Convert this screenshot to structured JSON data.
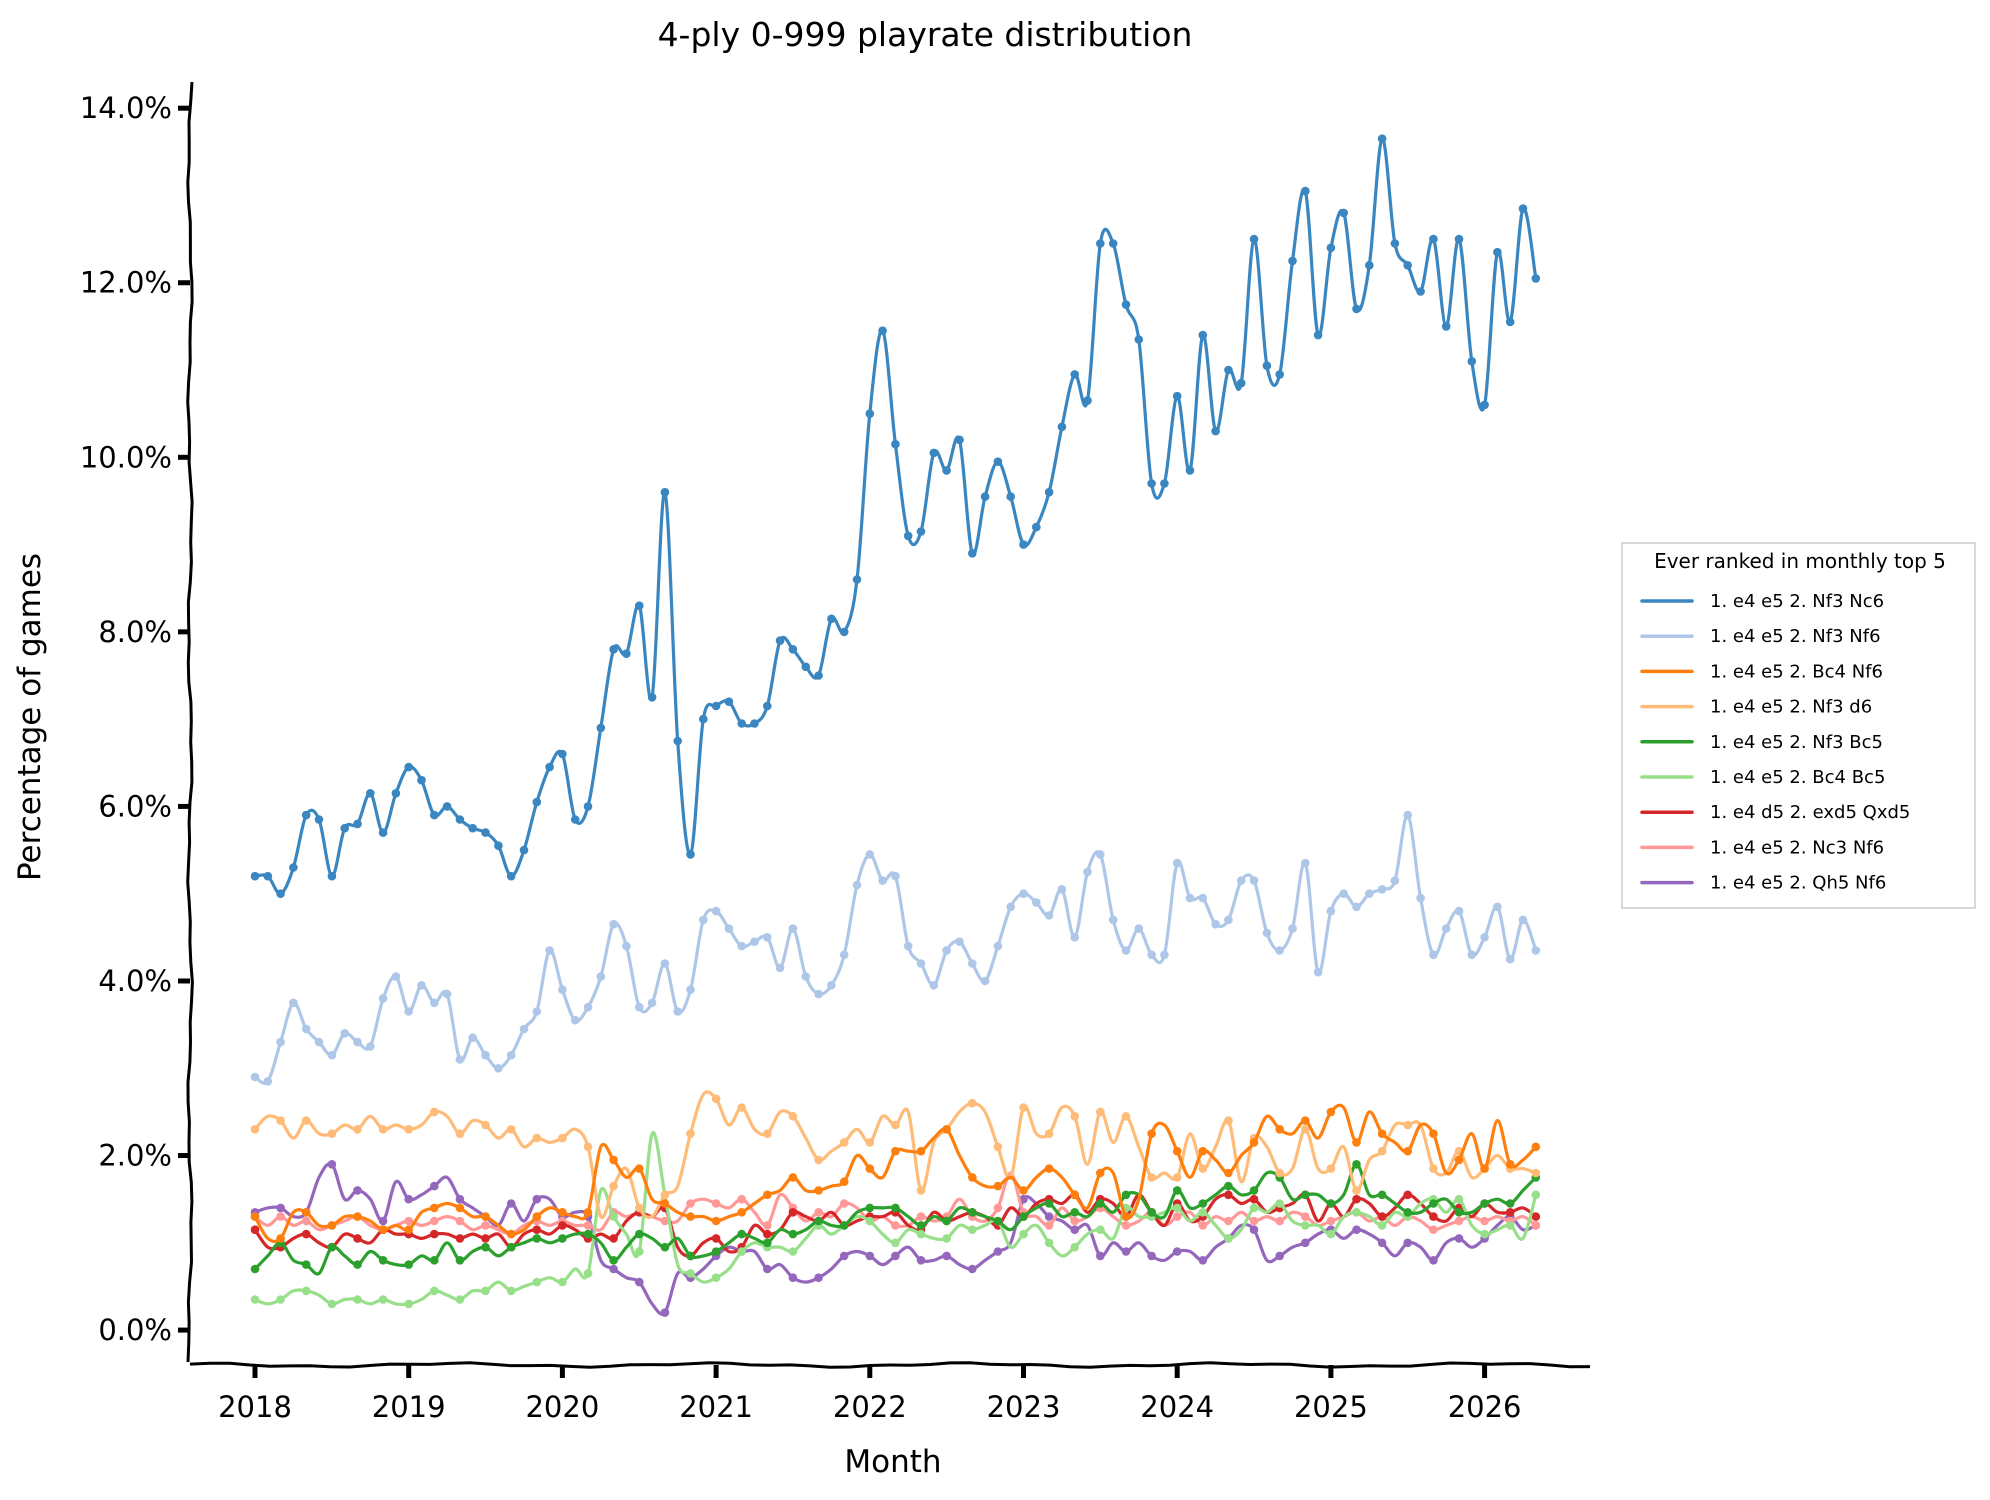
{
  "chart_data": {
    "type": "line",
    "title": "4-ply 0-999 playrate distribution",
    "xlabel": "Month",
    "ylabel": "Percentage of games",
    "x_ticks": [
      "2018",
      "2019",
      "2020",
      "2021",
      "2022",
      "2023",
      "2024",
      "2025",
      "2026"
    ],
    "y_ticks": [
      "0.0%",
      "2.0%",
      "4.0%",
      "6.0%",
      "8.0%",
      "10.0%",
      "12.0%",
      "14.0%"
    ],
    "ylim": [
      -0.4,
      14.3
    ],
    "xlim": [
      "2017-07",
      "2026-09"
    ],
    "x_start": "2018-01",
    "x_frequency": "monthly",
    "grid": false,
    "markers": "shown on months where the series ranked in the monthly top 5",
    "legend": {
      "title": "Ever ranked in monthly top 5",
      "position": "right"
    },
    "series": [
      {
        "name": "1. e4 e5 2. Nf3 Nc6",
        "color": "#3a86c0",
        "values": [
          5.2,
          5.2,
          5.0,
          5.3,
          5.9,
          5.85,
          5.2,
          5.75,
          5.8,
          6.15,
          5.7,
          6.15,
          6.45,
          6.3,
          5.9,
          6.0,
          5.85,
          5.75,
          5.7,
          5.55,
          5.2,
          5.5,
          6.05,
          6.45,
          6.6,
          5.85,
          6.0,
          6.9,
          7.8,
          7.75,
          8.3,
          7.25,
          9.6,
          6.75,
          5.45,
          7.0,
          7.15,
          7.2,
          6.95,
          6.95,
          7.15,
          7.9,
          7.8,
          7.6,
          7.5,
          8.15,
          8.0,
          8.6,
          10.5,
          11.45,
          10.15,
          9.1,
          9.15,
          10.05,
          9.85,
          10.2,
          8.9,
          9.55,
          9.95,
          9.55,
          9.0,
          9.2,
          9.6,
          10.35,
          10.95,
          10.65,
          12.45,
          12.45,
          11.75,
          11.35,
          9.7,
          9.7,
          10.7,
          9.85,
          11.4,
          10.3,
          11.0,
          10.85,
          12.5,
          11.05,
          10.95,
          12.25,
          13.05,
          11.4,
          12.4,
          12.8,
          11.7,
          12.2,
          13.65,
          12.45,
          12.2,
          11.9,
          12.5,
          11.5,
          12.5,
          11.1,
          10.6,
          12.35,
          11.55,
          12.85,
          12.05
        ]
      },
      {
        "name": "1. e4 e5 2. Nf3 Nf6",
        "color": "#aec7e8",
        "values": [
          2.9,
          2.85,
          3.3,
          3.75,
          3.45,
          3.3,
          3.15,
          3.4,
          3.3,
          3.25,
          3.8,
          4.05,
          3.65,
          3.95,
          3.75,
          3.85,
          3.1,
          3.35,
          3.15,
          3.0,
          3.15,
          3.45,
          3.65,
          4.35,
          3.9,
          3.55,
          3.7,
          4.05,
          4.65,
          4.4,
          3.7,
          3.75,
          4.2,
          3.65,
          3.9,
          4.7,
          4.8,
          4.6,
          4.4,
          4.45,
          4.5,
          4.15,
          4.6,
          4.05,
          3.85,
          3.95,
          4.3,
          5.1,
          5.45,
          5.15,
          5.2,
          4.4,
          4.2,
          3.95,
          4.35,
          4.45,
          4.2,
          4.0,
          4.4,
          4.85,
          5.0,
          4.9,
          4.75,
          5.05,
          4.5,
          5.25,
          5.45,
          4.7,
          4.35,
          4.6,
          4.3,
          4.3,
          5.35,
          4.95,
          4.95,
          4.65,
          4.7,
          5.15,
          5.15,
          4.55,
          4.35,
          4.6,
          5.35,
          4.1,
          4.8,
          5.0,
          4.85,
          5.0,
          5.05,
          5.15,
          5.9,
          4.95,
          4.3,
          4.6,
          4.8,
          4.3,
          4.5,
          4.85,
          4.25,
          4.7,
          4.35
        ]
      },
      {
        "name": "1. e4 e5 2. Bc4 Nf6",
        "color": "#ff7f0e",
        "values": [
          1.3,
          1.05,
          1.05,
          1.35,
          1.35,
          1.2,
          1.2,
          1.3,
          1.3,
          1.25,
          1.15,
          1.2,
          1.15,
          1.35,
          1.4,
          1.45,
          1.4,
          1.3,
          1.3,
          1.2,
          1.1,
          1.15,
          1.3,
          1.4,
          1.35,
          1.3,
          1.35,
          2.1,
          1.95,
          1.75,
          1.85,
          1.5,
          1.45,
          1.35,
          1.3,
          1.3,
          1.25,
          1.3,
          1.35,
          1.45,
          1.55,
          1.6,
          1.75,
          1.6,
          1.6,
          1.65,
          1.7,
          2.0,
          1.85,
          1.75,
          2.05,
          2.05,
          2.05,
          2.2,
          2.3,
          2.0,
          1.75,
          1.65,
          1.65,
          1.75,
          1.6,
          1.75,
          1.85,
          1.75,
          1.55,
          1.4,
          1.8,
          1.8,
          1.3,
          1.5,
          2.25,
          2.35,
          2.05,
          1.75,
          2.05,
          1.95,
          1.8,
          2.0,
          2.15,
          2.45,
          2.3,
          2.25,
          2.4,
          2.2,
          2.5,
          2.55,
          2.15,
          2.5,
          2.25,
          2.15,
          2.05,
          2.35,
          2.25,
          1.8,
          1.95,
          2.25,
          1.85,
          2.4,
          1.9,
          1.95,
          2.1
        ]
      },
      {
        "name": "1. e4 e5 2. Nf3 d6",
        "color": "#ffbb78",
        "values": [
          2.3,
          2.45,
          2.4,
          2.2,
          2.4,
          2.25,
          2.25,
          2.35,
          2.3,
          2.45,
          2.3,
          2.35,
          2.3,
          2.35,
          2.5,
          2.45,
          2.25,
          2.4,
          2.35,
          2.2,
          2.3,
          2.1,
          2.2,
          2.15,
          2.2,
          2.3,
          2.1,
          1.3,
          1.65,
          1.85,
          1.4,
          1.3,
          1.55,
          1.65,
          2.25,
          2.7,
          2.65,
          2.35,
          2.55,
          2.3,
          2.25,
          2.5,
          2.45,
          2.2,
          1.95,
          2.05,
          2.15,
          2.3,
          2.15,
          2.45,
          2.35,
          2.5,
          1.6,
          2.15,
          2.3,
          2.5,
          2.6,
          2.5,
          2.1,
          1.75,
          2.55,
          2.25,
          2.25,
          2.55,
          2.45,
          1.9,
          2.5,
          2.15,
          2.45,
          2.1,
          1.75,
          1.8,
          1.75,
          2.25,
          1.85,
          2.1,
          2.4,
          1.7,
          2.2,
          2.1,
          1.8,
          1.85,
          2.3,
          1.85,
          1.85,
          2.1,
          1.6,
          1.95,
          2.05,
          2.35,
          2.35,
          2.35,
          1.85,
          1.8,
          2.05,
          1.75,
          1.85,
          2.0,
          1.85,
          1.85,
          1.8
        ]
      },
      {
        "name": "1. e4 e5 2. Nf3 Bc5",
        "color": "#2ca02c",
        "values": [
          0.7,
          0.85,
          1.0,
          0.8,
          0.75,
          0.65,
          0.95,
          0.85,
          0.75,
          0.9,
          0.8,
          0.75,
          0.75,
          0.85,
          0.8,
          1.0,
          0.8,
          0.9,
          0.95,
          0.85,
          0.95,
          1.0,
          1.05,
          1.0,
          1.05,
          1.1,
          1.1,
          1.0,
          0.8,
          0.95,
          1.1,
          1.05,
          0.95,
          1.05,
          0.85,
          0.85,
          0.9,
          1.0,
          1.1,
          1.05,
          1.0,
          1.15,
          1.1,
          1.15,
          1.25,
          1.2,
          1.2,
          1.35,
          1.4,
          1.4,
          1.4,
          1.3,
          1.2,
          1.3,
          1.25,
          1.4,
          1.35,
          1.3,
          1.25,
          1.15,
          1.3,
          1.4,
          1.45,
          1.3,
          1.35,
          1.3,
          1.45,
          1.35,
          1.55,
          1.55,
          1.35,
          1.3,
          1.6,
          1.4,
          1.45,
          1.55,
          1.65,
          1.55,
          1.6,
          1.8,
          1.75,
          1.5,
          1.55,
          1.55,
          1.45,
          1.55,
          1.9,
          1.55,
          1.55,
          1.45,
          1.35,
          1.35,
          1.45,
          1.5,
          1.35,
          1.35,
          1.45,
          1.5,
          1.45,
          1.6,
          1.75
        ]
      },
      {
        "name": "1. e4 e5 2. Bc4 Bc5",
        "color": "#98df8a",
        "values": [
          0.35,
          0.3,
          0.35,
          0.45,
          0.45,
          0.4,
          0.3,
          0.35,
          0.35,
          0.3,
          0.35,
          0.3,
          0.3,
          0.35,
          0.45,
          0.4,
          0.35,
          0.45,
          0.45,
          0.55,
          0.45,
          0.5,
          0.55,
          0.6,
          0.55,
          0.7,
          0.65,
          1.6,
          1.3,
          1.1,
          0.9,
          2.25,
          1.55,
          0.75,
          0.65,
          0.55,
          0.6,
          0.7,
          0.9,
          1.0,
          0.95,
          0.95,
          0.9,
          1.05,
          1.2,
          1.1,
          1.2,
          1.3,
          1.25,
          1.1,
          1.0,
          1.15,
          1.1,
          1.05,
          1.05,
          1.2,
          1.15,
          1.2,
          1.25,
          0.95,
          1.1,
          1.2,
          1.0,
          0.85,
          0.95,
          1.1,
          1.15,
          1.05,
          1.4,
          1.3,
          1.3,
          1.35,
          1.4,
          1.25,
          1.35,
          1.2,
          1.05,
          1.15,
          1.4,
          1.35,
          1.45,
          1.25,
          1.2,
          1.2,
          1.1,
          1.3,
          1.35,
          1.3,
          1.2,
          1.35,
          1.3,
          1.45,
          1.5,
          1.35,
          1.5,
          1.2,
          1.1,
          1.15,
          1.2,
          1.05,
          1.55
        ]
      },
      {
        "name": "1. e4 d5 2. exd5 Qxd5",
        "color": "#d62728",
        "values": [
          1.15,
          0.95,
          0.95,
          1.05,
          1.1,
          1.0,
          0.95,
          1.1,
          1.05,
          1.0,
          1.15,
          1.1,
          1.1,
          1.05,
          1.1,
          1.1,
          1.05,
          1.1,
          1.05,
          1.1,
          0.95,
          1.1,
          1.15,
          1.1,
          1.2,
          1.15,
          1.05,
          1.1,
          1.05,
          1.25,
          1.35,
          1.3,
          1.4,
          0.95,
          0.85,
          1.0,
          1.05,
          0.9,
          0.95,
          1.2,
          1.1,
          1.15,
          1.35,
          1.3,
          1.25,
          1.35,
          1.2,
          1.25,
          1.3,
          1.3,
          1.35,
          1.2,
          1.15,
          1.35,
          1.25,
          1.3,
          1.35,
          1.3,
          1.2,
          1.4,
          1.3,
          1.45,
          1.5,
          1.45,
          1.55,
          1.35,
          1.5,
          1.45,
          1.3,
          1.55,
          1.35,
          1.2,
          1.45,
          1.25,
          1.3,
          1.5,
          1.55,
          1.45,
          1.5,
          1.35,
          1.4,
          1.45,
          1.55,
          1.25,
          1.45,
          1.3,
          1.5,
          1.45,
          1.3,
          1.4,
          1.55,
          1.45,
          1.3,
          1.25,
          1.4,
          1.3,
          1.45,
          1.35,
          1.35,
          1.4,
          1.3
        ]
      },
      {
        "name": "1. e4 e5 2. Nc3 Nf6",
        "color": "#ff9896",
        "values": [
          1.3,
          1.2,
          1.3,
          1.2,
          1.25,
          1.15,
          1.2,
          1.25,
          1.3,
          1.2,
          1.15,
          1.2,
          1.25,
          1.2,
          1.25,
          1.3,
          1.25,
          1.15,
          1.2,
          1.15,
          1.1,
          1.2,
          1.25,
          1.2,
          1.25,
          1.2,
          1.2,
          1.15,
          1.35,
          1.3,
          1.35,
          1.3,
          1.25,
          1.25,
          1.45,
          1.5,
          1.45,
          1.4,
          1.5,
          1.35,
          1.2,
          1.55,
          1.4,
          1.25,
          1.35,
          1.3,
          1.45,
          1.4,
          1.25,
          1.3,
          1.2,
          1.2,
          1.3,
          1.25,
          1.3,
          1.5,
          1.3,
          1.25,
          1.4,
          1.8,
          1.35,
          1.3,
          1.2,
          1.4,
          1.25,
          1.3,
          1.4,
          1.3,
          1.2,
          1.25,
          1.35,
          1.2,
          1.3,
          1.35,
          1.2,
          1.3,
          1.25,
          1.35,
          1.25,
          1.3,
          1.25,
          1.35,
          1.3,
          1.2,
          1.25,
          1.3,
          1.35,
          1.25,
          1.3,
          1.2,
          1.3,
          1.25,
          1.15,
          1.2,
          1.25,
          1.3,
          1.25,
          1.3,
          1.25,
          1.3,
          1.2
        ]
      },
      {
        "name": "1. e4 e5 2. Qh5 Nf6",
        "color": "#9467bd",
        "values": [
          1.35,
          1.4,
          1.4,
          1.3,
          1.35,
          1.75,
          1.9,
          1.5,
          1.6,
          1.5,
          1.25,
          1.7,
          1.5,
          1.55,
          1.65,
          1.75,
          1.5,
          1.4,
          1.3,
          1.2,
          1.45,
          1.25,
          1.5,
          1.5,
          1.3,
          1.35,
          1.3,
          0.8,
          0.7,
          0.6,
          0.55,
          0.3,
          0.2,
          0.65,
          0.6,
          0.7,
          0.85,
          0.95,
          0.9,
          0.9,
          0.7,
          0.75,
          0.6,
          0.55,
          0.6,
          0.7,
          0.85,
          0.9,
          0.85,
          0.75,
          0.85,
          0.95,
          0.8,
          0.8,
          0.85,
          0.75,
          0.7,
          0.8,
          0.9,
          1.0,
          1.5,
          1.45,
          1.3,
          1.25,
          1.15,
          1.2,
          0.85,
          1.0,
          0.9,
          1.0,
          0.85,
          0.8,
          0.9,
          0.9,
          0.8,
          0.95,
          1.05,
          1.2,
          1.15,
          0.8,
          0.85,
          0.95,
          1.0,
          1.1,
          1.15,
          1.05,
          1.15,
          1.1,
          1.0,
          0.85,
          1.0,
          0.95,
          0.8,
          1.0,
          1.05,
          0.95,
          1.05,
          1.2,
          1.3,
          1.15,
          1.2
        ]
      }
    ]
  }
}
